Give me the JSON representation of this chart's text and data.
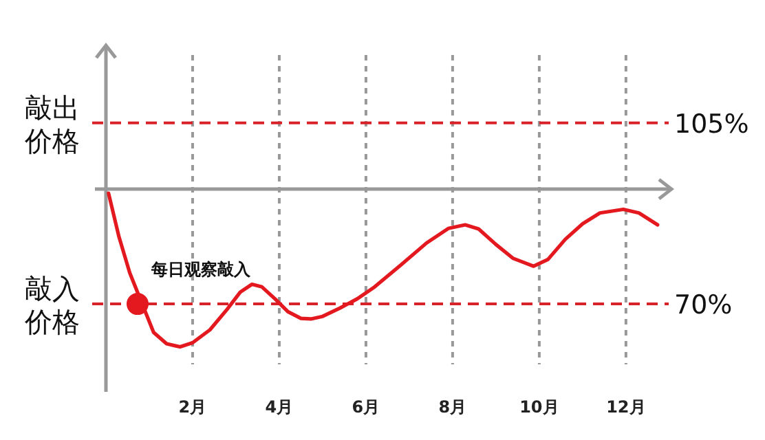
{
  "chart_data": {
    "type": "line",
    "x": [
      0.06,
      0.3,
      0.55,
      1.1,
      1.4,
      1.71,
      2.0,
      2.4,
      2.8,
      3.1,
      3.37,
      3.6,
      3.9,
      4.2,
      4.5,
      4.73,
      5.0,
      5.4,
      5.8,
      6.2,
      6.8,
      7.4,
      7.9,
      8.29,
      8.6,
      9.0,
      9.4,
      9.87,
      10.2,
      10.6,
      11.0,
      11.4,
      11.94,
      12.3,
      12.73
    ],
    "series": [
      {
        "color": "#e3191f",
        "values": [
          91.4,
          83,
          76,
          64.5,
          62.3,
          61.7,
          62.5,
          65,
          69,
          72.3,
          73.8,
          73.3,
          71,
          68.5,
          67.2,
          67.1,
          67.6,
          69.2,
          71,
          73.3,
          77.5,
          81.8,
          84.6,
          85.3,
          84.5,
          81.5,
          78.8,
          77.3,
          78.6,
          82.5,
          85.5,
          87.6,
          88.3,
          87.6,
          85.3
        ]
      }
    ],
    "xlim": [
      0,
      13.05
    ],
    "ylim": [
      53,
      120
    ],
    "xticks": [
      {
        "value": 2,
        "label": "2月"
      },
      {
        "value": 4,
        "label": "4月"
      },
      {
        "value": 6,
        "label": "6月"
      },
      {
        "value": 8,
        "label": "8月"
      },
      {
        "value": 10,
        "label": "10月"
      },
      {
        "value": 12,
        "label": "12月"
      }
    ],
    "yticks": [
      {
        "value": 105,
        "label": "105%"
      },
      {
        "value": 70,
        "label": "70%"
      }
    ],
    "grid": "x",
    "marker": "none",
    "line_style": "solid",
    "ref_lines": [
      {
        "axis": "y",
        "value": 105,
        "label": "敲出价格",
        "color": "#d7222a",
        "line_style": "dashed"
      },
      {
        "axis": "y",
        "value": 70,
        "label": "敲入价格",
        "color": "#d7222a",
        "line_style": "dashed"
      },
      {
        "axis": "y",
        "value": 92.2,
        "color": "#999999",
        "line_style": "solid"
      }
    ],
    "annotations": [
      {
        "text": "每日观察敲入",
        "x": 0.73,
        "y": 70
      }
    ]
  }
}
